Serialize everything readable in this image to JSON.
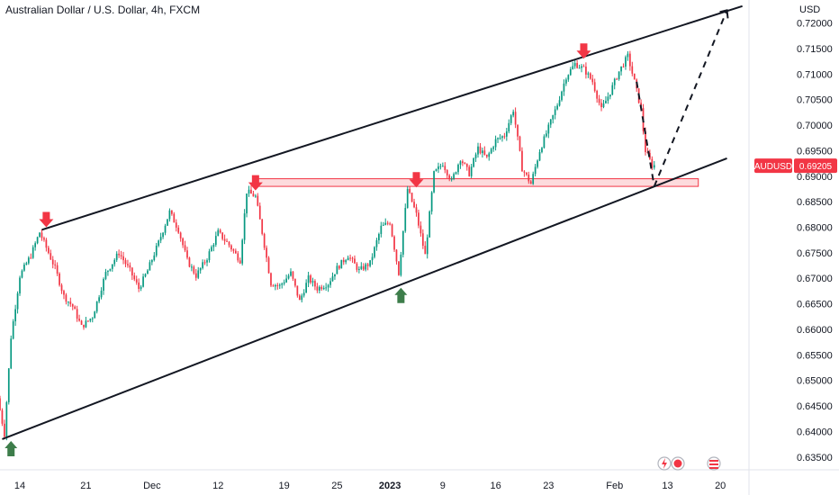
{
  "chart_data": {
    "type": "candlestick",
    "title": "Australian Dollar / U.S. Dollar, 4h, FXCM",
    "yunit": "USD",
    "ylim": [
      0.6325,
      0.7245
    ],
    "y_ticks": [
      0.635,
      0.64,
      0.645,
      0.65,
      0.655,
      0.66,
      0.665,
      0.67,
      0.675,
      0.68,
      0.685,
      0.69,
      0.695,
      0.7,
      0.705,
      0.71,
      0.715,
      0.72
    ],
    "y_tick_labels": [
      "0.63500",
      "0.64000",
      "0.64500",
      "0.65000",
      "0.65500",
      "0.66000",
      "0.66500",
      "0.67000",
      "0.67500",
      "0.68000",
      "0.68500",
      "0.69000",
      "0.69500",
      "0.70000",
      "0.70500",
      "0.71000",
      "0.71500",
      "0.72000"
    ],
    "x_ticks": [
      {
        "label": "14",
        "index": 9,
        "bold": false
      },
      {
        "label": "21",
        "index": 39,
        "bold": false
      },
      {
        "label": "Dec",
        "index": 69,
        "bold": false
      },
      {
        "label": "12",
        "index": 99,
        "bold": false
      },
      {
        "label": "19",
        "index": 129,
        "bold": false
      },
      {
        "label": "25",
        "index": 153,
        "bold": false
      },
      {
        "label": "2023",
        "index": 177,
        "bold": true
      },
      {
        "label": "9",
        "index": 201,
        "bold": false
      },
      {
        "label": "16",
        "index": 225,
        "bold": false
      },
      {
        "label": "23",
        "index": 249,
        "bold": false
      },
      {
        "label": "Feb",
        "index": 279,
        "bold": false
      },
      {
        "label": "13",
        "index": 303,
        "bold": false
      },
      {
        "label": "20",
        "index": 327,
        "bold": false
      }
    ],
    "index_range": [
      0,
      340
    ],
    "symbol": "AUDUSD",
    "last_price": 0.69205,
    "last_price_label": "0.69205",
    "up_color": "#089981",
    "down_color": "#f23645",
    "anchors": [
      [
        0,
        0.6465
      ],
      [
        3,
        0.6395
      ],
      [
        6,
        0.6585
      ],
      [
        10,
        0.6705
      ],
      [
        15,
        0.6745
      ],
      [
        19,
        0.679
      ],
      [
        22,
        0.676
      ],
      [
        26,
        0.672
      ],
      [
        30,
        0.6665
      ],
      [
        34,
        0.6645
      ],
      [
        38,
        0.6605
      ],
      [
        43,
        0.6625
      ],
      [
        49,
        0.671
      ],
      [
        55,
        0.675
      ],
      [
        60,
        0.6715
      ],
      [
        64,
        0.668
      ],
      [
        68,
        0.6715
      ],
      [
        73,
        0.677
      ],
      [
        78,
        0.683
      ],
      [
        82,
        0.6795
      ],
      [
        86,
        0.6735
      ],
      [
        90,
        0.6705
      ],
      [
        95,
        0.674
      ],
      [
        100,
        0.679
      ],
      [
        105,
        0.6765
      ],
      [
        110,
        0.6735
      ],
      [
        113,
        0.687
      ],
      [
        117,
        0.686
      ],
      [
        120,
        0.679
      ],
      [
        124,
        0.669
      ],
      [
        128,
        0.6685
      ],
      [
        133,
        0.671
      ],
      [
        137,
        0.6655
      ],
      [
        141,
        0.67
      ],
      [
        145,
        0.668
      ],
      [
        150,
        0.669
      ],
      [
        154,
        0.672
      ],
      [
        159,
        0.6745
      ],
      [
        164,
        0.6715
      ],
      [
        169,
        0.673
      ],
      [
        174,
        0.68
      ],
      [
        178,
        0.681
      ],
      [
        182,
        0.671
      ],
      [
        186,
        0.6875
      ],
      [
        190,
        0.6825
      ],
      [
        194,
        0.6745
      ],
      [
        198,
        0.6905
      ],
      [
        202,
        0.6925
      ],
      [
        206,
        0.689
      ],
      [
        210,
        0.6935
      ],
      [
        214,
        0.6905
      ],
      [
        218,
        0.6955
      ],
      [
        222,
        0.6935
      ],
      [
        226,
        0.697
      ],
      [
        230,
        0.698
      ],
      [
        234,
        0.703
      ],
      [
        238,
        0.6915
      ],
      [
        242,
        0.6885
      ],
      [
        246,
        0.695
      ],
      [
        250,
        0.6995
      ],
      [
        254,
        0.704
      ],
      [
        258,
        0.7095
      ],
      [
        262,
        0.712
      ],
      [
        266,
        0.711
      ],
      [
        270,
        0.7085
      ],
      [
        274,
        0.703
      ],
      [
        278,
        0.7065
      ],
      [
        282,
        0.7105
      ],
      [
        286,
        0.7135
      ],
      [
        289,
        0.7085
      ],
      [
        292,
        0.703
      ],
      [
        294,
        0.695
      ],
      [
        297,
        0.6921
      ]
    ],
    "trendlines": [
      {
        "name": "upper-channel",
        "from": [
          19,
          0.6795
        ],
        "to": [
          337,
          0.7233
        ],
        "style": "solid"
      },
      {
        "name": "lower-channel",
        "from": [
          1,
          0.6385
        ],
        "to": [
          330,
          0.6935
        ],
        "style": "solid"
      },
      {
        "name": "projection-down",
        "from": [
          289,
          0.7085
        ],
        "to": [
          297,
          0.688
        ],
        "style": "dashed"
      },
      {
        "name": "projection-up",
        "from": [
          297,
          0.688
        ],
        "to": [
          330,
          0.7225
        ],
        "style": "dashed"
      }
    ],
    "zone": {
      "from_index": 115,
      "to_index": 317,
      "low": 0.688,
      "high": 0.6895,
      "color": "#f23645"
    },
    "markers": [
      {
        "type": "down-arrow",
        "index": 21,
        "value": 0.68,
        "color": "#f23645"
      },
      {
        "type": "down-arrow",
        "index": 116,
        "value": 0.6872,
        "color": "#f23645"
      },
      {
        "type": "down-arrow",
        "index": 189,
        "value": 0.6878,
        "color": "#f23645"
      },
      {
        "type": "down-arrow",
        "index": 265,
        "value": 0.713,
        "color": "#f23645"
      },
      {
        "type": "up-arrow",
        "index": 5,
        "value": 0.6385,
        "color": "#3d7d4a"
      },
      {
        "type": "up-arrow",
        "index": 182,
        "value": 0.6685,
        "color": "#3d7d4a"
      }
    ]
  }
}
